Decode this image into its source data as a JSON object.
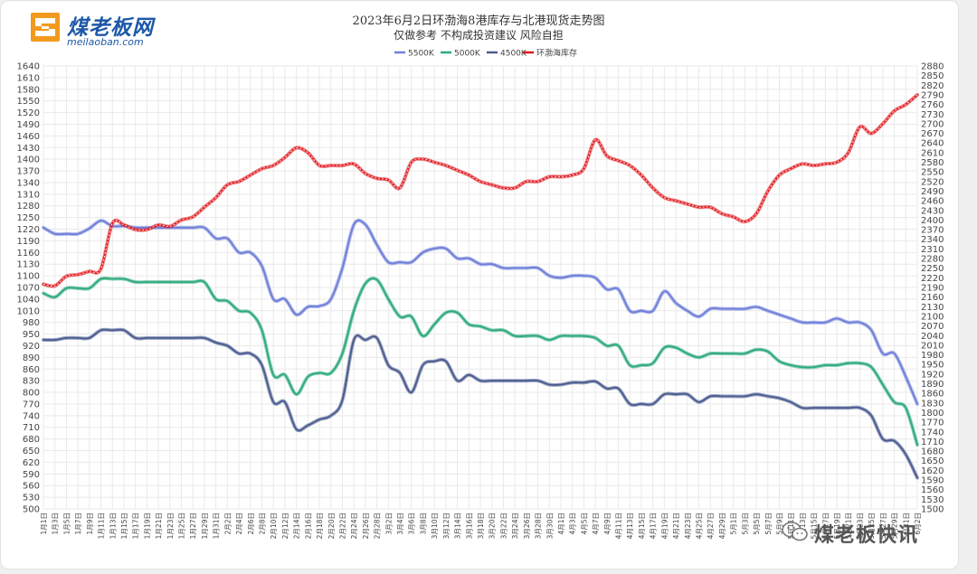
{
  "brand": {
    "name": "煤老板网",
    "url": "meilaoban.com",
    "watermark": "煤老板快讯"
  },
  "colors": {
    "s5500": "#6f7fd9",
    "s5000": "#2eaa7c",
    "s4500": "#4a5b8f",
    "stock": "#e0161b",
    "grid": "#e9e9e9",
    "axis_text": "#444444"
  },
  "chart_data": {
    "type": "line",
    "title": "2023年6月2日环渤海8港库存与北港现货走势图",
    "subtitle": "仅做参考 不构成投资建议 风险自担",
    "x_labels": [
      "1月1日",
      "1月3日",
      "1月5日",
      "1月7日",
      "1月9日",
      "1月11日",
      "1月13日",
      "1月15日",
      "1月17日",
      "1月19日",
      "1月21日",
      "1月23日",
      "1月25日",
      "1月27日",
      "1月29日",
      "1月31日",
      "2月2日",
      "2月4日",
      "2月6日",
      "2月8日",
      "2月10日",
      "2月12日",
      "2月14日",
      "2月16日",
      "2月18日",
      "2月20日",
      "2月22日",
      "2月24日",
      "2月26日",
      "2月28日",
      "3月2日",
      "3月4日",
      "3月6日",
      "3月8日",
      "3月10日",
      "3月12日",
      "3月14日",
      "3月16日",
      "3月18日",
      "3月20日",
      "3月22日",
      "3月24日",
      "3月26日",
      "3月28日",
      "3月30日",
      "4月1日",
      "4月3日",
      "4月5日",
      "4月7日",
      "4月9日",
      "4月11日",
      "4月13日",
      "4月15日",
      "4月17日",
      "4月19日",
      "4月21日",
      "4月23日",
      "4月25日",
      "4月27日",
      "4月29日",
      "5月1日",
      "5月3日",
      "5月5日",
      "5月7日",
      "5月9日",
      "5月11日",
      "5月13日",
      "5月15日",
      "5月17日",
      "5月19日",
      "5月21日",
      "5月23日",
      "5月25日",
      "5月27日",
      "5月29日",
      "5月31日",
      "6月2日"
    ],
    "left_axis": {
      "min": 500,
      "max": 1640,
      "step": 30
    },
    "right_axis": {
      "min": 1500,
      "max": 2880,
      "step": 30
    },
    "legend": [
      "5500K",
      "5000K",
      "4500K",
      "环渤海库存"
    ],
    "legend_position": "top-center",
    "series": [
      {
        "name": "5500K",
        "axis": "left",
        "values": [
          1224,
          1208,
          1208,
          1208,
          1222,
          1242,
          1228,
          1228,
          1224,
          1224,
          1224,
          1224,
          1224,
          1224,
          1224,
          1196,
          1196,
          1160,
          1160,
          1125,
          1040,
          1040,
          1000,
          1020,
          1022,
          1040,
          1120,
          1232,
          1232,
          1180,
          1135,
          1135,
          1135,
          1160,
          1170,
          1170,
          1145,
          1145,
          1130,
          1130,
          1120,
          1120,
          1120,
          1120,
          1100,
          1095,
          1100,
          1100,
          1095,
          1065,
          1065,
          1010,
          1010,
          1010,
          1060,
          1030,
          1010,
          995,
          1015,
          1015,
          1015,
          1015,
          1020,
          1010,
          1000,
          990,
          980,
          980,
          980,
          990,
          980,
          980,
          960,
          900,
          900,
          840,
          770
        ]
      },
      {
        "name": "5000K",
        "axis": "left",
        "values": [
          1055,
          1045,
          1068,
          1068,
          1068,
          1092,
          1092,
          1092,
          1084,
          1084,
          1084,
          1084,
          1084,
          1084,
          1084,
          1040,
          1035,
          1010,
          1005,
          960,
          845,
          845,
          795,
          840,
          850,
          850,
          900,
          1010,
          1080,
          1090,
          1040,
          995,
          995,
          945,
          975,
          1005,
          1005,
          975,
          970,
          960,
          960,
          945,
          945,
          945,
          935,
          945,
          945,
          945,
          940,
          920,
          920,
          870,
          870,
          875,
          915,
          915,
          900,
          890,
          900,
          900,
          900,
          900,
          910,
          905,
          880,
          870,
          865,
          865,
          870,
          870,
          875,
          875,
          865,
          820,
          775,
          760,
          665
        ]
      },
      {
        "name": "4500K",
        "axis": "left",
        "values": [
          935,
          935,
          940,
          940,
          940,
          960,
          960,
          960,
          940,
          940,
          940,
          940,
          940,
          940,
          940,
          928,
          920,
          900,
          900,
          870,
          775,
          775,
          705,
          715,
          730,
          740,
          780,
          935,
          935,
          940,
          870,
          850,
          800,
          870,
          880,
          880,
          830,
          845,
          830,
          830,
          830,
          830,
          830,
          830,
          820,
          820,
          825,
          825,
          828,
          810,
          810,
          770,
          770,
          770,
          795,
          795,
          795,
          775,
          790,
          790,
          790,
          790,
          795,
          790,
          785,
          775,
          760,
          760,
          760,
          760,
          760,
          760,
          740,
          680,
          675,
          640,
          580
        ]
      },
      {
        "name": "环渤海库存",
        "axis": "right",
        "values": [
          2200,
          2195,
          2225,
          2230,
          2240,
          2248,
          2390,
          2385,
          2370,
          2370,
          2385,
          2380,
          2400,
          2410,
          2440,
          2470,
          2510,
          2520,
          2540,
          2560,
          2570,
          2595,
          2625,
          2610,
          2570,
          2570,
          2570,
          2575,
          2545,
          2530,
          2525,
          2500,
          2580,
          2590,
          2580,
          2570,
          2555,
          2540,
          2520,
          2510,
          2500,
          2500,
          2520,
          2520,
          2535,
          2535,
          2540,
          2560,
          2650,
          2600,
          2585,
          2570,
          2540,
          2500,
          2470,
          2460,
          2450,
          2440,
          2440,
          2420,
          2410,
          2395,
          2420,
          2490,
          2540,
          2560,
          2575,
          2570,
          2575,
          2580,
          2610,
          2690,
          2670,
          2700,
          2740,
          2760,
          2790
        ]
      }
    ]
  }
}
